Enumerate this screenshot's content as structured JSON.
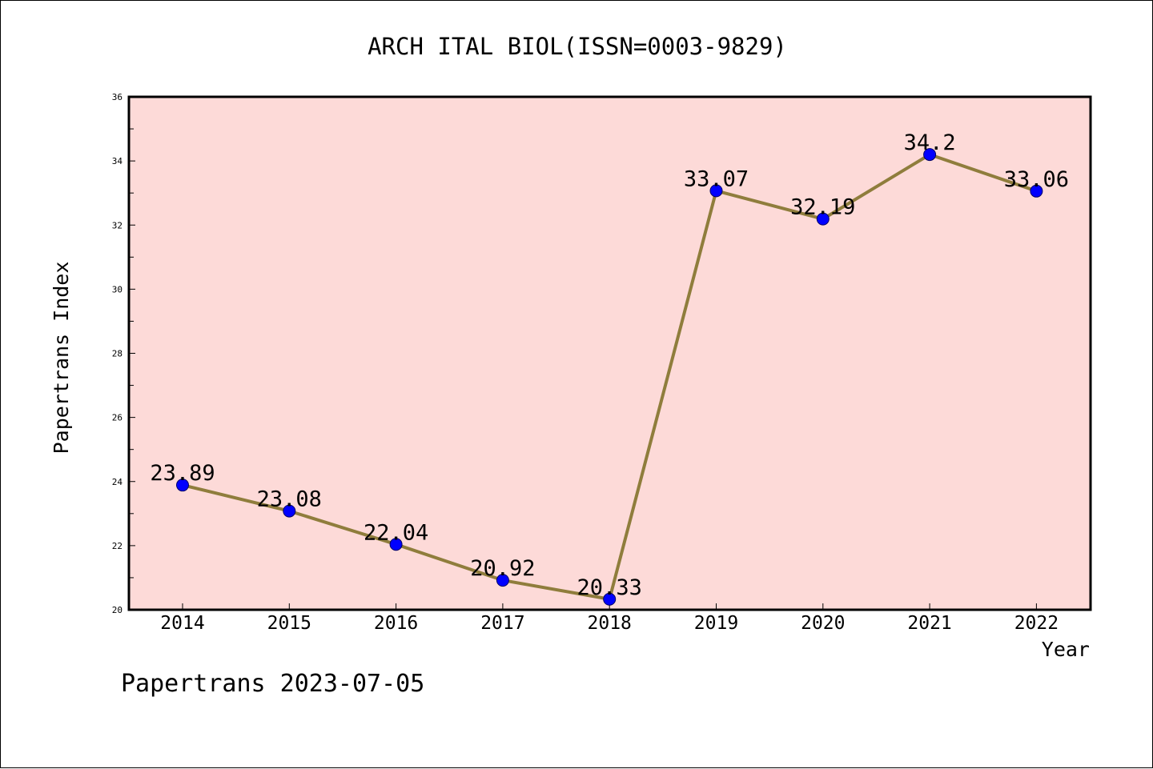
{
  "chart_data": {
    "type": "line",
    "title": "ARCH ITAL BIOL(ISSN=0003-9829)",
    "xlabel": "Year",
    "ylabel": "Papertrans Index",
    "footer": "Papertrans 2023-07-05",
    "categories": [
      "2014",
      "2015",
      "2016",
      "2017",
      "2018",
      "2019",
      "2020",
      "2021",
      "2022"
    ],
    "series": [
      {
        "values": [
          23.89,
          23.08,
          22.04,
          20.92,
          20.33,
          33.07,
          32.19,
          34.2,
          33.06
        ],
        "labels": [
          "23.89",
          "23.08",
          "22.04",
          "20.92",
          "20.33",
          "33.07",
          "32.19",
          "34.2",
          "33.06"
        ]
      }
    ],
    "ylim": [
      20,
      36
    ],
    "yticks": [
      "20",
      "22",
      "24",
      "26",
      "28",
      "30",
      "32",
      "34",
      "36"
    ],
    "grid": false,
    "colors": {
      "plot_background": "#fddad8",
      "line": "#8f7d3c",
      "marker_fill": "#0000ff",
      "marker_edge": "#000066",
      "frame": "#000000"
    }
  }
}
